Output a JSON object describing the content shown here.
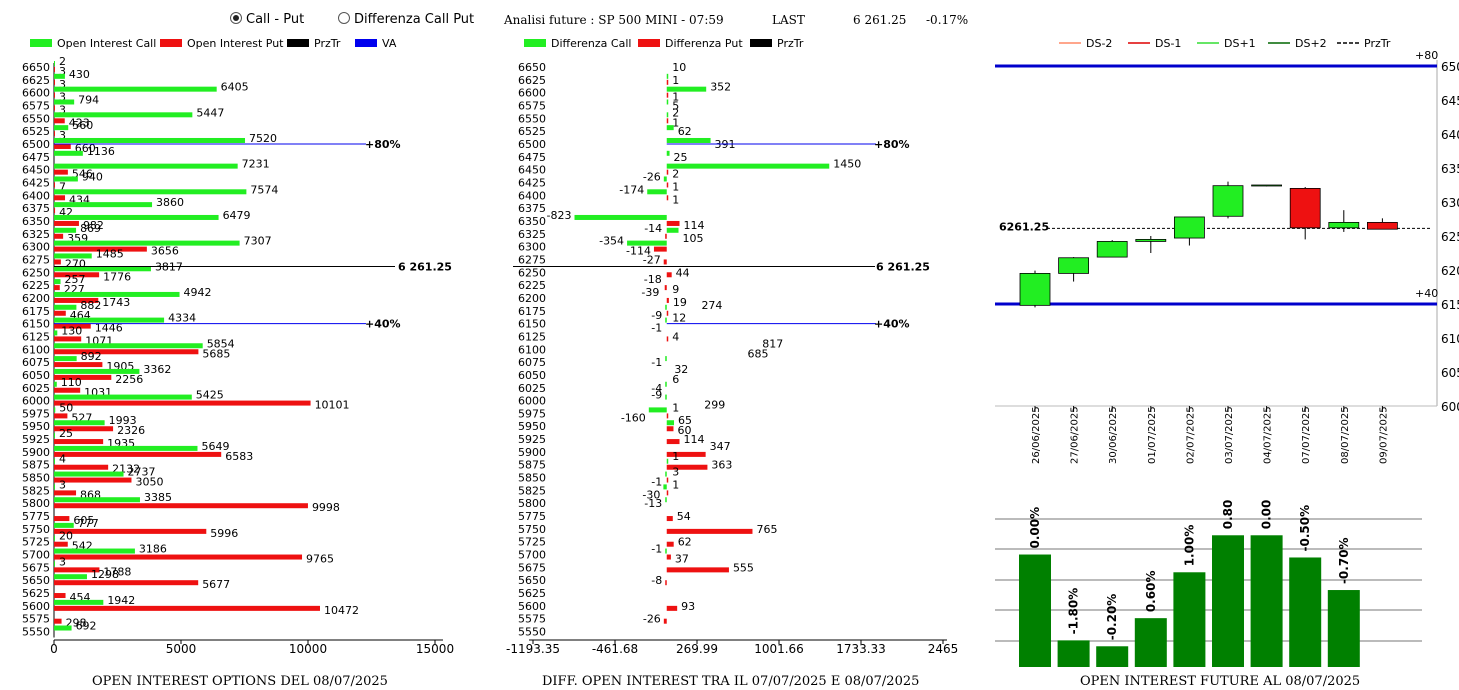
{
  "header": {
    "radio_call_put": "Call - Put",
    "radio_diff": "Differenza Call Put",
    "title": "Analisi future : SP 500 MINI - 07:59",
    "last_label": "LAST",
    "last_value": "6 261.25",
    "last_change": "-0.17%"
  },
  "footers": {
    "left": "OPEN INTEREST OPTIONS DEL 08/07/2025",
    "mid": "DIFF. OPEN INTEREST TRA IL 07/07/2025 E 08/07/2025",
    "right": "OPEN INTEREST FUTURE AL 08/07/2025"
  },
  "colors": {
    "call": "#22ee22",
    "put": "#ee1111",
    "przTr": "#000000",
    "va": "#0000ee",
    "bar_green": "#008000"
  },
  "chart_data": [
    {
      "type": "bar",
      "orientation": "horizontal",
      "legend": [
        "Open Interest Call",
        "Open Interest Put",
        "PrzTr",
        "VA"
      ],
      "strikes": [
        6650,
        6625,
        6600,
        6575,
        6550,
        6525,
        6500,
        6475,
        6450,
        6425,
        6400,
        6375,
        6350,
        6325,
        6300,
        6275,
        6250,
        6225,
        6200,
        6175,
        6150,
        6125,
        6100,
        6075,
        6050,
        6025,
        6000,
        5975,
        5950,
        5925,
        5900,
        5875,
        5850,
        5825,
        5800,
        5775,
        5750,
        5725,
        5700,
        5675,
        5650,
        5625,
        5600,
        5575,
        5550
      ],
      "series": [
        {
          "name": "Open Interest Call",
          "values": [
            2,
            430,
            6405,
            794,
            5447,
            560,
            7520,
            1136,
            7231,
            940,
            7574,
            3860,
            6479,
            869,
            7307,
            1485,
            3817,
            257,
            4942,
            882,
            4334,
            130,
            5854,
            892,
            3362,
            110,
            5425,
            50,
            1993,
            25,
            5649,
            4,
            2737,
            3,
            3385,
            null,
            777,
            20,
            3186,
            3,
            1298,
            null,
            1942,
            null,
            692
          ]
        },
        {
          "name": "Open Interest Put",
          "values": [
            3,
            3,
            3,
            3,
            423,
            3,
            660,
            null,
            546,
            7,
            434,
            42,
            982,
            359,
            3656,
            270,
            1776,
            227,
            1743,
            464,
            1446,
            1071,
            5685,
            1905,
            2256,
            1031,
            10101,
            527,
            2326,
            1935,
            6583,
            2132,
            3050,
            868,
            9998,
            605,
            5996,
            542,
            9765,
            1788,
            5677,
            454,
            10472,
            298,
            null
          ]
        }
      ],
      "x_ticks": [
        "0",
        "5000",
        "10000",
        "15000"
      ],
      "xlim": [
        0,
        15000
      ],
      "price_marker": {
        "strike": 6261.25,
        "label": "6 261.25"
      },
      "va_markers": [
        {
          "strike": 6500,
          "label": "+80%"
        },
        {
          "strike": 6150,
          "label": "+40%"
        }
      ]
    },
    {
      "type": "bar",
      "orientation": "horizontal",
      "legend": [
        "Differenza Call",
        "Differenza Put",
        "PrzTr"
      ],
      "strikes": [
        6650,
        6625,
        6600,
        6575,
        6550,
        6525,
        6500,
        6475,
        6450,
        6425,
        6400,
        6375,
        6350,
        6325,
        6300,
        6275,
        6250,
        6225,
        6200,
        6175,
        6150,
        6125,
        6100,
        6075,
        6050,
        6025,
        6000,
        5975,
        5950,
        5925,
        5900,
        5875,
        5850,
        5825,
        5800,
        5775,
        5750,
        5725,
        5700,
        5675,
        5650,
        5625,
        5600,
        5575,
        5550
      ],
      "series": [
        {
          "name": "Differenza Call",
          "values": [
            null,
            10,
            352,
            5,
            2,
            62,
            391,
            25,
            1450,
            -26,
            -174,
            null,
            -823,
            105,
            -354,
            null,
            null,
            null,
            null,
            -9,
            -1,
            null,
            null,
            -1,
            null,
            -4,
            -9,
            -160,
            65,
            null,
            null,
            1,
            -1,
            -30,
            -13,
            null,
            null,
            null,
            -1,
            null,
            null,
            null,
            null,
            null,
            null
          ]
        },
        {
          "name": "Differenza Put",
          "values": [
            null,
            1,
            1,
            null,
            1,
            null,
            null,
            null,
            2,
            1,
            1,
            null,
            114,
            -14,
            -114,
            -27,
            44,
            -18,
            19,
            12,
            null,
            4,
            null,
            null,
            null,
            null,
            null,
            1,
            60,
            114,
            347,
            363,
            3,
            1,
            null,
            54,
            765,
            62,
            37,
            555,
            -8,
            null,
            93,
            -26,
            null
          ]
        }
      ],
      "labels": [
        [
          {
            "t": "10",
            "s": 1
          }
        ],
        [
          {
            "t": "1",
            "s": 1
          }
        ],
        [
          {
            "t": "352",
            "s": 0
          },
          {
            "t": "1",
            "s": 1
          }
        ],
        [
          {
            "t": "5",
            "s": 0
          }
        ],
        [
          {
            "t": "2",
            "s": 0
          },
          {
            "t": "1",
            "s": 1
          }
        ],
        [
          {
            "t": "62",
            "s": 0
          }
        ],
        [
          {
            "t": "391",
            "s": 0
          }
        ],
        [
          {
            "t": "25",
            "s": 0
          }
        ],
        [
          {
            "t": "1450",
            "s": 0
          },
          {
            "t": "2",
            "s": 1
          }
        ],
        [
          {
            "t": "-26",
            "s": 0
          },
          {
            "t": "1",
            "s": 1
          }
        ],
        [
          {
            "t": "-174",
            "s": 0
          },
          {
            "t": "1",
            "s": 1
          }
        ],
        [],
        [
          {
            "t": "-823",
            "s": 0
          },
          {
            "t": "114",
            "s": 1
          }
        ],
        [
          {
            "t": "-14",
            "s": 1
          },
          {
            "t": "105",
            "s": 0
          }
        ],
        [
          {
            "t": "-354",
            "s": 0
          },
          {
            "t": "-114",
            "s": 1
          }
        ],
        [
          {
            "t": "-27",
            "s": 1
          }
        ],
        [
          {
            "t": "44",
            "s": 1
          }
        ],
        [
          {
            "t": "-18",
            "s": 1
          },
          {
            "t": "9",
            "s": 1
          }
        ],
        [
          {
            "t": "-39",
            "s": 1
          },
          {
            "t": "19",
            "s": 1
          }
        ],
        [
          {
            "t": "274",
            "s": 1
          },
          {
            "t": "-9",
            "s": 0
          }
        ],
        [
          {
            "t": "12",
            "s": 1
          },
          {
            "t": "-1",
            "s": 0
          }
        ],
        [
          {
            "t": "4",
            "s": 1
          }
        ],
        [
          {
            "t": "817",
            "s": 1
          },
          {
            "t": "685",
            "s": 1
          }
        ],
        [
          {
            "t": "-1",
            "s": 0
          }
        ],
        [
          {
            "t": "32",
            "s": 1
          },
          {
            "t": "6",
            "s": 1
          }
        ],
        [
          {
            "t": "-4",
            "s": 0
          }
        ],
        [
          {
            "t": "-9",
            "s": 0
          },
          {
            "t": "299",
            "s": 1
          }
        ],
        [
          {
            "t": "1",
            "s": 1
          },
          {
            "t": "-160",
            "s": 0
          }
        ],
        [
          {
            "t": "65",
            "s": 0
          },
          {
            "t": "60",
            "s": 1
          }
        ],
        [
          {
            "t": "114",
            "s": 1
          }
        ],
        [
          {
            "t": "347",
            "s": 1
          },
          {
            "t": "1",
            "s": 0
          }
        ],
        [
          {
            "t": "363",
            "s": 1
          }
        ],
        [
          {
            "t": "3",
            "s": 1
          },
          {
            "t": "-1",
            "s": 0
          }
        ],
        [
          {
            "t": "1",
            "s": 1
          },
          {
            "t": "-30",
            "s": 0
          }
        ],
        [
          {
            "t": "-13",
            "s": 0
          }
        ],
        [
          {
            "t": "54",
            "s": 1
          }
        ],
        [
          {
            "t": "765",
            "s": 1
          }
        ],
        [
          {
            "t": "62",
            "s": 1
          }
        ],
        [
          {
            "t": "-1",
            "s": 0
          },
          {
            "t": "37",
            "s": 1
          }
        ],
        [
          {
            "t": "555",
            "s": 1
          }
        ],
        [
          {
            "t": "-8",
            "s": 1
          }
        ],
        [],
        [
          {
            "t": "93",
            "s": 1
          }
        ],
        [
          {
            "t": "-26",
            "s": 1
          }
        ],
        []
      ],
      "x_ticks": [
        "-1193.35",
        "-461.68",
        "269.99",
        "1001.66",
        "1733.33",
        "2465"
      ],
      "xlim": [
        -1193.35,
        2465
      ],
      "price_marker": {
        "strike": 6261.25,
        "label": "6 261.25"
      },
      "va_markers": [
        {
          "strike": 6500,
          "label": "+80%"
        },
        {
          "strike": 6150,
          "label": "+40%"
        }
      ]
    },
    {
      "type": "candlestick",
      "legend": [
        "DS-2",
        "DS-1",
        "DS+1",
        "DS+2",
        "PrzTr"
      ],
      "dates": [
        "26/06/2025",
        "27/06/2025",
        "30/06/2025",
        "01/07/2025",
        "02/07/2025",
        "03/07/2025",
        "04/07/2025",
        "07/07/2025",
        "08/07/2025",
        "09/07/2025"
      ],
      "ohlc": [
        [
          6148,
          6199,
          6145,
          6195
        ],
        [
          6195,
          6219,
          6183,
          6218
        ],
        [
          6219,
          6244,
          6219,
          6242
        ],
        [
          6242,
          6250,
          6225,
          6245
        ],
        [
          6247,
          6278,
          6236,
          6278
        ],
        [
          6279,
          6330,
          6276,
          6324
        ],
        [
          6324,
          6325,
          6323,
          6325
        ],
        [
          6320,
          6322,
          6245,
          6262
        ],
        [
          6262,
          6288,
          6256,
          6270
        ],
        [
          6270,
          6276,
          6260,
          6260
        ]
      ],
      "y_ticks": [
        "6500",
        "6450",
        "6400",
        "6350",
        "6300",
        "6250",
        "6200",
        "6150",
        "6100",
        "6050",
        "6000"
      ],
      "ylim": [
        6000,
        6500
      ],
      "przTr": 6261.25,
      "przTr_label": "6261.25",
      "lines": [
        {
          "value": 6500,
          "label": "+80"
        },
        {
          "value": 6150,
          "label": "+40"
        }
      ]
    },
    {
      "type": "bar",
      "values": [
        0.0,
        -1.8,
        -0.2,
        0.6,
        1.0,
        0.8,
        0.0,
        -0.5,
        -0.7
      ],
      "heights": [
        0.76,
        0.18,
        0.14,
        0.33,
        0.64,
        0.89,
        0.89,
        0.74,
        0.52
      ],
      "labels": [
        "0.00%",
        "-1.80%",
        "-0.20%",
        "0.60%",
        "1.00%",
        "0.80%",
        "0.00%",
        "-0.50%",
        "-0.70%"
      ]
    }
  ]
}
